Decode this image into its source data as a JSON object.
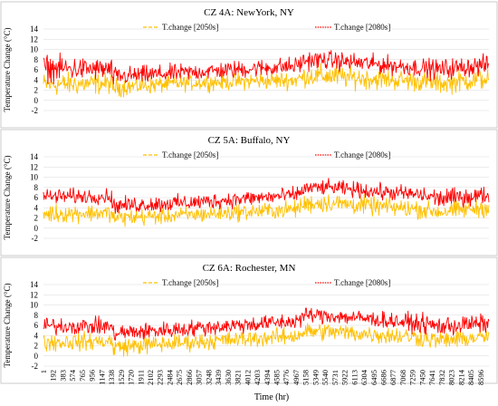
{
  "figure": {
    "x_axis_label": "Time (hr)",
    "y_axis_label": "Temperature Change (°C)"
  },
  "colors": {
    "series_2050s": "#FFC000",
    "series_2080s": "#FF0000",
    "grid": "#D9D9D9",
    "panel_border": "#BFBFBF",
    "text": "#000000"
  },
  "chart_data": [
    {
      "type": "line",
      "title": "CZ 4A: NewYork, NY",
      "ylabel": "Temperature Change (°C)",
      "xlabel": "",
      "ylim": [
        -2,
        14
      ],
      "yticks": [
        "-2",
        "0",
        "2",
        "4",
        "6",
        "8",
        "10",
        "12",
        "14"
      ],
      "grid": true,
      "legend_position": "top-center",
      "x_range": [
        1,
        8760
      ],
      "series": [
        {
          "name": "T.change [2050s]",
          "style": "dashed",
          "x": [
            1,
            1340,
            1342,
            2900,
            4960,
            5160,
            5600,
            6500,
            7350,
            7800,
            8760
          ],
          "band_low": [
            0.2,
            0.8,
            0.2,
            1.5,
            1.8,
            2.2,
            2.0,
            1.6,
            1.3,
            0.8,
            1.5
          ],
          "band_high": [
            6.0,
            5.8,
            4.8,
            5.4,
            6.2,
            7.3,
            7.6,
            6.8,
            6.3,
            5.8,
            7.2
          ]
        },
        {
          "name": "T.change [2080s]",
          "style": "dotted",
          "x": [
            1,
            1340,
            1342,
            2900,
            4960,
            5160,
            5600,
            6500,
            7350,
            7800,
            8760
          ],
          "band_low": [
            3.0,
            3.5,
            2.2,
            3.4,
            4.5,
            5.5,
            5.6,
            4.8,
            4.2,
            3.5,
            4.6
          ],
          "band_high": [
            9.6,
            8.6,
            7.0,
            7.6,
            9.0,
            10.2,
            10.2,
            9.4,
            8.7,
            8.6,
            9.4
          ]
        }
      ]
    },
    {
      "type": "line",
      "title": "CZ 5A: Buffalo, NY",
      "ylabel": "Temperature Change (°C)",
      "xlabel": "",
      "ylim": [
        -2,
        14
      ],
      "yticks": [
        "-2",
        "0",
        "2",
        "4",
        "6",
        "8",
        "10",
        "12",
        "14"
      ],
      "grid": true,
      "legend_position": "top-center",
      "x_range": [
        1,
        8760
      ],
      "series": [
        {
          "name": "T.change [2050s]",
          "style": "dashed",
          "x": [
            1,
            1340,
            1342,
            2900,
            4960,
            5160,
            5600,
            6500,
            7350,
            7800,
            8760
          ],
          "band_low": [
            0.5,
            1.0,
            -0.2,
            0.6,
            1.6,
            2.4,
            2.6,
            2.0,
            1.5,
            1.0,
            1.8
          ],
          "band_high": [
            5.2,
            5.0,
            4.2,
            4.6,
            5.8,
            7.2,
            7.4,
            6.6,
            6.0,
            5.4,
            6.4
          ]
        },
        {
          "name": "T.change [2080s]",
          "style": "dotted",
          "x": [
            1,
            1340,
            1342,
            2900,
            4960,
            5160,
            5600,
            6500,
            7350,
            7800,
            8760
          ],
          "band_low": [
            4.2,
            4.5,
            2.4,
            3.0,
            4.6,
            6.0,
            6.2,
            5.2,
            4.6,
            3.4,
            4.4
          ],
          "band_high": [
            8.2,
            8.0,
            6.4,
            7.0,
            8.4,
            9.6,
            9.8,
            9.2,
            8.6,
            8.2,
            8.6
          ]
        }
      ]
    },
    {
      "type": "line",
      "title": "CZ 6A: Rochester, MN",
      "ylabel": "Temperature Change (°C)",
      "xlabel": "Time (hr)",
      "ylim": [
        -2,
        14
      ],
      "yticks": [
        "-2",
        "0",
        "2",
        "4",
        "6",
        "8",
        "10",
        "12",
        "14"
      ],
      "grid": true,
      "legend_position": "top-center",
      "x_range": [
        1,
        8760
      ],
      "series": [
        {
          "name": "T.change [2050s]",
          "style": "dashed",
          "x": [
            1,
            1340,
            1342,
            2900,
            4960,
            5160,
            5600,
            6500,
            7350,
            7800,
            8760
          ],
          "band_low": [
            0.4,
            0.8,
            -0.6,
            0.6,
            1.8,
            2.6,
            2.6,
            2.0,
            1.4,
            0.8,
            1.6
          ],
          "band_high": [
            5.0,
            5.0,
            4.0,
            4.8,
            6.0,
            7.0,
            7.0,
            6.4,
            6.0,
            5.2,
            6.0
          ]
        },
        {
          "name": "T.change [2080s]",
          "style": "dotted",
          "x": [
            1,
            1340,
            1342,
            2900,
            4960,
            5160,
            5600,
            6500,
            7350,
            7800,
            8760
          ],
          "band_low": [
            3.8,
            3.8,
            2.2,
            3.4,
            4.8,
            6.0,
            6.0,
            5.2,
            4.2,
            3.2,
            4.2
          ],
          "band_high": [
            8.0,
            7.8,
            6.6,
            7.4,
            8.8,
            10.0,
            9.8,
            9.2,
            8.6,
            8.4,
            8.6
          ]
        }
      ]
    }
  ],
  "x_tick_labels": [
    "1",
    "192",
    "383",
    "574",
    "765",
    "956",
    "1147",
    "1338",
    "1529",
    "1720",
    "1911",
    "2102",
    "2293",
    "2484",
    "2675",
    "2866",
    "3057",
    "3248",
    "3439",
    "3630",
    "3821",
    "4012",
    "4203",
    "4394",
    "4585",
    "4776",
    "4967",
    "5158",
    "5349",
    "5540",
    "5731",
    "5922",
    "6113",
    "6304",
    "6495",
    "6686",
    "6877",
    "7068",
    "7259",
    "7450",
    "7641",
    "7832",
    "8023",
    "8214",
    "8405",
    "8596"
  ]
}
